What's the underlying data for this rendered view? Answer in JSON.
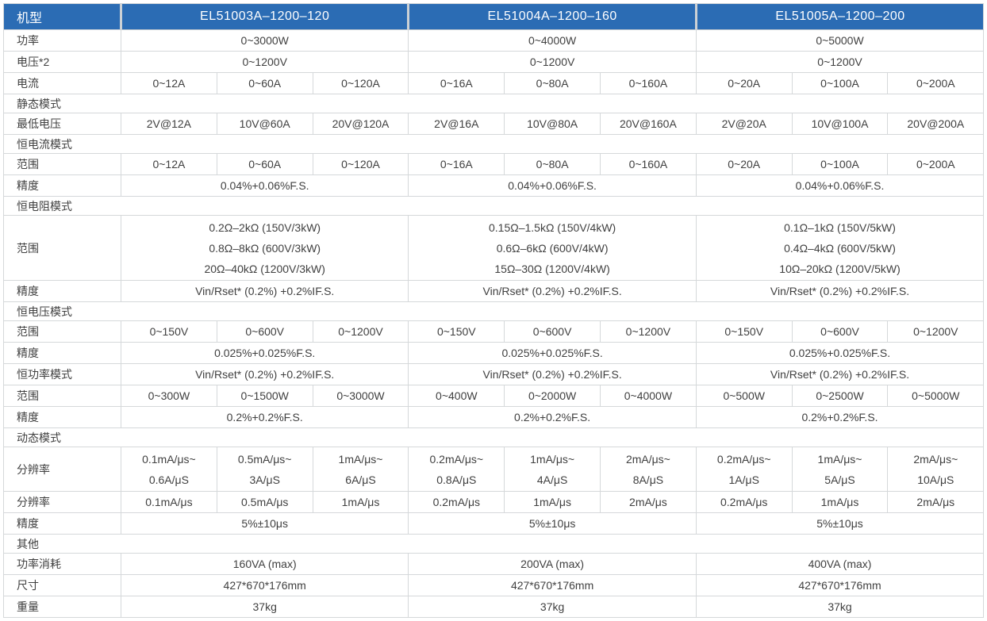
{
  "colors": {
    "header_bg": "#2b6cb4",
    "header_text": "#ffffff",
    "border": "#d5d8da",
    "body_text": "#404040"
  },
  "table": {
    "header": {
      "label": "机型",
      "models": [
        "EL51003A–1200–120",
        "EL51004A–1200–160",
        "EL51005A–1200–200"
      ]
    },
    "rows": [
      {
        "type": "merged",
        "label": "功率",
        "values": [
          "0~3000W",
          "0~4000W",
          "0~5000W"
        ]
      },
      {
        "type": "merged",
        "label": "电压*2",
        "values": [
          "0~1200V",
          "0~1200V",
          "0~1200V"
        ]
      },
      {
        "type": "split",
        "label": "电流",
        "values": [
          [
            "0~12A",
            "0~60A",
            "0~120A"
          ],
          [
            "0~16A",
            "0~80A",
            "0~160A"
          ],
          [
            "0~20A",
            "0~100A",
            "0~200A"
          ]
        ]
      },
      {
        "type": "section",
        "label": "静态模式"
      },
      {
        "type": "split",
        "label": "最低电压",
        "values": [
          [
            "2V@12A",
            "10V@60A",
            "20V@120A"
          ],
          [
            "2V@16A",
            "10V@80A",
            "20V@160A"
          ],
          [
            "2V@20A",
            "10V@100A",
            "20V@200A"
          ]
        ]
      },
      {
        "type": "section",
        "label": "恒电流模式"
      },
      {
        "type": "split",
        "label": "范围",
        "values": [
          [
            "0~12A",
            "0~60A",
            "0~120A"
          ],
          [
            "0~16A",
            "0~80A",
            "0~160A"
          ],
          [
            "0~20A",
            "0~100A",
            "0~200A"
          ]
        ]
      },
      {
        "type": "merged",
        "label": "精度",
        "values": [
          "0.04%+0.06%F.S.",
          "0.04%+0.06%F.S.",
          "0.04%+0.06%F.S."
        ]
      },
      {
        "type": "section",
        "label": "恒电阻模式"
      },
      {
        "type": "merged",
        "label": "范围",
        "values": [
          "0.2Ω–2kΩ (150V/3kW)\n0.8Ω–8kΩ (600V/3kW)\n20Ω–40kΩ (1200V/3kW)",
          "0.15Ω–1.5kΩ (150V/4kW)\n0.6Ω–6kΩ (600V/4kW)\n15Ω–30Ω (1200V/4kW)",
          "0.1Ω–1kΩ (150V/5kW)\n0.4Ω–4kΩ (600V/5kW)\n10Ω–20kΩ (1200V/5kW)"
        ]
      },
      {
        "type": "merged",
        "label": "精度",
        "values": [
          "Vin/Rset* (0.2%) +0.2%IF.S.",
          "Vin/Rset* (0.2%) +0.2%IF.S.",
          "Vin/Rset* (0.2%) +0.2%IF.S."
        ]
      },
      {
        "type": "section",
        "label": "恒电压模式"
      },
      {
        "type": "split",
        "label": "范围",
        "values": [
          [
            "0~150V",
            "0~600V",
            "0~1200V"
          ],
          [
            "0~150V",
            "0~600V",
            "0~1200V"
          ],
          [
            "0~150V",
            "0~600V",
            "0~1200V"
          ]
        ]
      },
      {
        "type": "merged",
        "label": "精度",
        "values": [
          "0.025%+0.025%F.S.",
          "0.025%+0.025%F.S.",
          "0.025%+0.025%F.S."
        ]
      },
      {
        "type": "merged",
        "label": "恒功率模式",
        "values": [
          "Vin/Rset* (0.2%) +0.2%IF.S.",
          "Vin/Rset* (0.2%) +0.2%IF.S.",
          "Vin/Rset* (0.2%) +0.2%IF.S."
        ]
      },
      {
        "type": "split",
        "label": "范围",
        "values": [
          [
            "0~300W",
            "0~1500W",
            "0~3000W"
          ],
          [
            "0~400W",
            "0~2000W",
            "0~4000W"
          ],
          [
            "0~500W",
            "0~2500W",
            "0~5000W"
          ]
        ]
      },
      {
        "type": "merged",
        "label": "精度",
        "values": [
          "0.2%+0.2%F.S.",
          "0.2%+0.2%F.S.",
          "0.2%+0.2%F.S."
        ]
      },
      {
        "type": "section",
        "label": "动态模式"
      },
      {
        "type": "split",
        "label": "分辨率",
        "values": [
          [
            "0.1mA/μs~\n0.6A/μS",
            "0.5mA/μs~\n3A/μS",
            "1mA/μs~\n6A/μS"
          ],
          [
            "0.2mA/μs~\n0.8A/μS",
            "1mA/μs~\n4A/μS",
            "2mA/μs~\n8A/μS"
          ],
          [
            "0.2mA/μs~\n1A/μS",
            "1mA/μs~\n5A/μS",
            "2mA/μs~\n10A/μS"
          ]
        ]
      },
      {
        "type": "split",
        "label": "分辨率",
        "values": [
          [
            "0.1mA/μs",
            "0.5mA/μs",
            "1mA/μs"
          ],
          [
            "0.2mA/μs",
            "1mA/μs",
            "2mA/μs"
          ],
          [
            "0.2mA/μs",
            "1mA/μs",
            "2mA/μs"
          ]
        ]
      },
      {
        "type": "merged",
        "label": "精度",
        "values": [
          "5%±10μs",
          "5%±10μs",
          "5%±10μs"
        ]
      },
      {
        "type": "section",
        "label": "其他"
      },
      {
        "type": "merged",
        "label": "功率消耗",
        "values": [
          "160VA (max)",
          "200VA (max)",
          "400VA (max)"
        ]
      },
      {
        "type": "merged",
        "label": "尺寸",
        "values": [
          "427*670*176mm",
          "427*670*176mm",
          "427*670*176mm"
        ]
      },
      {
        "type": "merged",
        "label": "重量",
        "values": [
          "37kg",
          "37kg",
          "37kg"
        ]
      }
    ]
  }
}
